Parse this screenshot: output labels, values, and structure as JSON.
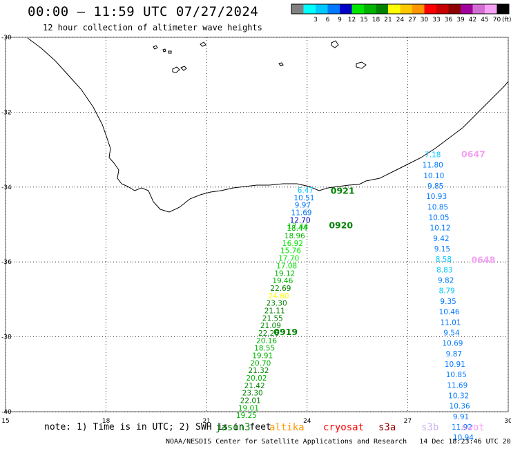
{
  "header": {
    "title": "00:00 – 11:59 UTC 07/27/2024",
    "subtitle": "12 hour collection of altimeter wave heights"
  },
  "legend": {
    "unit": "(ft)",
    "bins": [
      {
        "label": "",
        "color": "#808080"
      },
      {
        "label": "3",
        "color": "#00ffff"
      },
      {
        "label": "6",
        "color": "#00c8ff"
      },
      {
        "label": "9",
        "color": "#0078ff"
      },
      {
        "label": "12",
        "color": "#0000c8"
      },
      {
        "label": "15",
        "color": "#00e600"
      },
      {
        "label": "18",
        "color": "#00b400"
      },
      {
        "label": "21",
        "color": "#008200"
      },
      {
        "label": "24",
        "color": "#ffff00"
      },
      {
        "label": "27",
        "color": "#ffc800"
      },
      {
        "label": "30",
        "color": "#ff9600"
      },
      {
        "label": "33",
        "color": "#ff0000"
      },
      {
        "label": "36",
        "color": "#c80000"
      },
      {
        "label": "39",
        "color": "#8c0000"
      },
      {
        "label": "42",
        "color": "#a0009b"
      },
      {
        "label": "45",
        "color": "#d26ed2"
      },
      {
        "label": "70",
        "color": "#f5a0f5"
      },
      {
        "label": "",
        "color": "#000000"
      }
    ]
  },
  "axes": {
    "lon_ticks": [
      "15",
      "18",
      "21",
      "24",
      "27",
      "30"
    ],
    "lat_ticks": [
      "-30",
      "-32",
      "-34",
      "-36",
      "-38",
      "-40"
    ]
  },
  "tracks": [
    {
      "satellite": "jason3",
      "pass_labels": [
        {
          "text": "0921",
          "lon": 24.7,
          "lat": -34.18,
          "color": "#008200"
        },
        {
          "text": "0920",
          "lon": 24.65,
          "lat": -35.1,
          "color": "#008200"
        },
        {
          "text": "0919",
          "lon": 23.0,
          "lat": -37.95,
          "color": "#008200"
        }
      ],
      "points": [
        {
          "v": "6.47",
          "lon": 23.95,
          "lat": -34.15
        },
        {
          "v": "10.51",
          "lon": 23.91,
          "lat": -34.35
        },
        {
          "v": "9.97",
          "lon": 23.87,
          "lat": -34.55
        },
        {
          "v": "11.69",
          "lon": 23.83,
          "lat": -34.75
        },
        {
          "v": "12.70",
          "lon": 23.79,
          "lat": -34.95
        },
        {
          "v": "17.44",
          "lon": 23.72,
          "lat": -35.12
        },
        {
          "v": "18.44",
          "lon": 23.7,
          "lat": -35.17
        },
        {
          "v": "18.96",
          "lon": 23.63,
          "lat": -35.37
        },
        {
          "v": "16.92",
          "lon": 23.57,
          "lat": -35.57
        },
        {
          "v": "15.76",
          "lon": 23.51,
          "lat": -35.77
        },
        {
          "v": "17.70",
          "lon": 23.45,
          "lat": -35.97
        },
        {
          "v": "17.08",
          "lon": 23.39,
          "lat": -36.17
        },
        {
          "v": "19.12",
          "lon": 23.33,
          "lat": -36.37
        },
        {
          "v": "19.46",
          "lon": 23.27,
          "lat": -36.57
        },
        {
          "v": "22.69",
          "lon": 23.21,
          "lat": -36.77
        },
        {
          "v": "24.60",
          "lon": 23.15,
          "lat": -36.97
        },
        {
          "v": "23.30",
          "lon": 23.09,
          "lat": -37.17
        },
        {
          "v": "21.11",
          "lon": 23.03,
          "lat": -37.37
        },
        {
          "v": "21.55",
          "lon": 22.97,
          "lat": -37.57
        },
        {
          "v": "21.09",
          "lon": 22.91,
          "lat": -37.77
        },
        {
          "v": "22.26",
          "lon": 22.85,
          "lat": -37.97
        },
        {
          "v": "20.16",
          "lon": 22.79,
          "lat": -38.17
        },
        {
          "v": "18.55",
          "lon": 22.73,
          "lat": -38.37
        },
        {
          "v": "19.91",
          "lon": 22.67,
          "lat": -38.57
        },
        {
          "v": "20.70",
          "lon": 22.61,
          "lat": -38.77
        },
        {
          "v": "21.32",
          "lon": 22.55,
          "lat": -38.97
        },
        {
          "v": "20.02",
          "lon": 22.49,
          "lat": -39.17
        },
        {
          "v": "21.42",
          "lon": 22.43,
          "lat": -39.37
        },
        {
          "v": "23.30",
          "lon": 22.37,
          "lat": -39.57
        },
        {
          "v": "22.01",
          "lon": 22.31,
          "lat": -39.77
        },
        {
          "v": "19.01",
          "lon": 22.25,
          "lat": -39.97
        },
        {
          "v": "19.25",
          "lon": 22.19,
          "lat": -40.17
        }
      ]
    },
    {
      "satellite": "swot",
      "pass_labels": [
        {
          "text": "0647",
          "lon": 28.6,
          "lat": -33.2,
          "color": "#f5a0f5"
        },
        {
          "text": "0648",
          "lon": 28.9,
          "lat": -36.02,
          "color": "#f5a0f5"
        }
      ],
      "points": [
        {
          "v": "7.18",
          "lon": 27.75,
          "lat": -33.2
        },
        {
          "v": "11.80",
          "lon": 27.75,
          "lat": -33.48
        },
        {
          "v": "10.10",
          "lon": 27.78,
          "lat": -33.76
        },
        {
          "v": "9.85",
          "lon": 27.83,
          "lat": -34.04
        },
        {
          "v": "10.93",
          "lon": 27.86,
          "lat": -34.32
        },
        {
          "v": "10.85",
          "lon": 27.9,
          "lat": -34.6
        },
        {
          "v": "10.05",
          "lon": 27.93,
          "lat": -34.88
        },
        {
          "v": "10.12",
          "lon": 27.97,
          "lat": -35.16
        },
        {
          "v": "9.42",
          "lon": 28.0,
          "lat": -35.44
        },
        {
          "v": "9.15",
          "lon": 28.03,
          "lat": -35.72
        },
        {
          "v": "8.58",
          "lon": 28.07,
          "lat": -36.0
        },
        {
          "v": "8.83",
          "lon": 28.1,
          "lat": -36.28
        },
        {
          "v": "9.82",
          "lon": 28.14,
          "lat": -36.56
        },
        {
          "v": "8.79",
          "lon": 28.17,
          "lat": -36.84
        },
        {
          "v": "9.35",
          "lon": 28.21,
          "lat": -37.12
        },
        {
          "v": "10.46",
          "lon": 28.24,
          "lat": -37.4
        },
        {
          "v": "11.01",
          "lon": 28.28,
          "lat": -37.68
        },
        {
          "v": "9.54",
          "lon": 28.31,
          "lat": -37.96
        },
        {
          "v": "10.69",
          "lon": 28.34,
          "lat": -38.24
        },
        {
          "v": "9.87",
          "lon": 28.38,
          "lat": -38.52
        },
        {
          "v": "10.91",
          "lon": 28.41,
          "lat": -38.8
        },
        {
          "v": "10.85",
          "lon": 28.45,
          "lat": -39.08
        },
        {
          "v": "11.69",
          "lon": 28.48,
          "lat": -39.36
        },
        {
          "v": "10.32",
          "lon": 28.52,
          "lat": -39.64
        },
        {
          "v": "10.36",
          "lon": 28.55,
          "lat": -39.92
        },
        {
          "v": "9.91",
          "lon": 28.59,
          "lat": -40.2
        },
        {
          "v": "11.92",
          "lon": 28.62,
          "lat": -40.48
        },
        {
          "v": "10.94",
          "lon": 28.66,
          "lat": -40.76
        }
      ]
    }
  ],
  "footer": {
    "note": "note: 1) Time is in UTC; 2) SWH is in feet",
    "satellites": [
      {
        "name": "jason3",
        "color": "#008200"
      },
      {
        "name": "altika",
        "color": "#ff9600"
      },
      {
        "name": "cryosat",
        "color": "#ff0000"
      },
      {
        "name": "s3a",
        "color": "#8c0000"
      },
      {
        "name": "s3b",
        "color": "#c8b4f0"
      },
      {
        "name": "swot",
        "color": "#f5a0f5"
      }
    ],
    "credit": "NOAA/NESDIS Center for Satellite Applications and Research   14 Dec 18:23:46 UTC 2024"
  }
}
